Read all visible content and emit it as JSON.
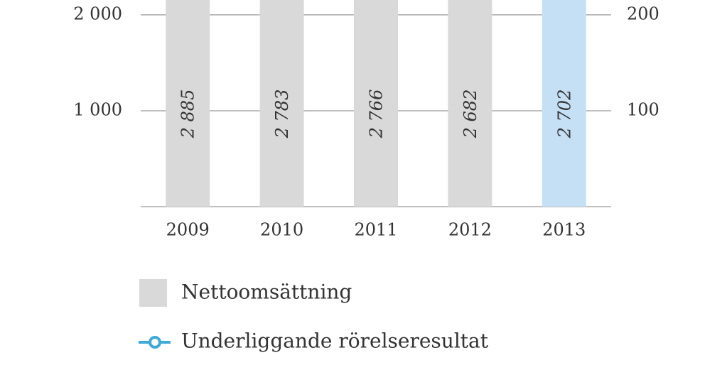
{
  "chart_data": {
    "type": "bar",
    "categories": [
      "2009",
      "2010",
      "2011",
      "2012",
      "2013"
    ],
    "series": [
      {
        "name": "Nettoomsättning",
        "color": "#d9d9d9",
        "colors": [
          "#d9d9d9",
          "#d9d9d9",
          "#d9d9d9",
          "#d9d9d9",
          "#c5dff5"
        ],
        "values": [
          2885,
          2783,
          2766,
          2682,
          2702
        ],
        "value_labels": [
          "2 885",
          "2 783",
          "2 766",
          "2 682",
          "2 702"
        ]
      },
      {
        "name": "Underliggande rörelseresultat",
        "type": "line",
        "axis": "y2",
        "color": "#3fa9d8",
        "values": [
          null,
          null,
          null,
          null,
          null
        ]
      }
    ],
    "ylim": [
      0,
      2155
    ],
    "yticks": [
      {
        "value": 1000,
        "label": "1 000"
      },
      {
        "value": 2000,
        "label": "2 000"
      }
    ],
    "y2lim": [
      0,
      215.5
    ],
    "y2ticks": [
      100,
      200
    ],
    "grid": true
  }
}
